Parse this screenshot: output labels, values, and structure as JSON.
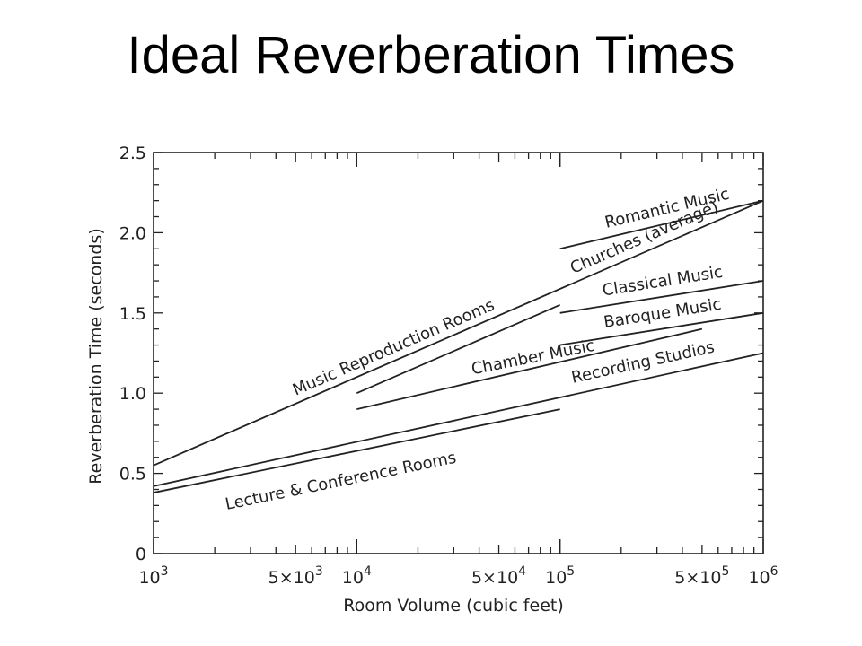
{
  "slide": {
    "title": "Ideal Reverberation Times"
  },
  "chart_data": {
    "type": "line",
    "title": "",
    "xlabel": "Room Volume (cubic feet)",
    "ylabel": "Reverberation Time (seconds)",
    "x_scale": "log",
    "xlim": [
      1000,
      1000000
    ],
    "ylim": [
      0,
      2.5
    ],
    "grid": false,
    "x_ticks": [
      {
        "value": 1000,
        "label": "10",
        "exp": "3"
      },
      {
        "value": 5000,
        "label": "5×10",
        "exp": "3"
      },
      {
        "value": 10000,
        "label": "10",
        "exp": "4"
      },
      {
        "value": 50000,
        "label": "5×10",
        "exp": "4"
      },
      {
        "value": 100000,
        "label": "10",
        "exp": "5"
      },
      {
        "value": 500000,
        "label": "5×10",
        "exp": "5"
      },
      {
        "value": 1000000,
        "label": "10",
        "exp": "6"
      }
    ],
    "y_ticks": [
      {
        "value": 0,
        "label": "0"
      },
      {
        "value": 0.5,
        "label": "0.5"
      },
      {
        "value": 1.0,
        "label": "1.0"
      },
      {
        "value": 1.5,
        "label": "1.5"
      },
      {
        "value": 2.0,
        "label": "2.0"
      },
      {
        "value": 2.5,
        "label": "2.5"
      }
    ],
    "series": [
      {
        "name": "Music Reproduction Rooms",
        "x": [
          1000,
          1000000
        ],
        "y": [
          0.55,
          2.2
        ]
      },
      {
        "name": "Churches (average)",
        "x": [
          10000,
          100000
        ],
        "y": [
          1.0,
          1.55
        ]
      },
      {
        "name": "Romantic Music",
        "x": [
          100000,
          1000000
        ],
        "y": [
          1.9,
          2.2
        ]
      },
      {
        "name": "Classical Music",
        "x": [
          100000,
          1000000
        ],
        "y": [
          1.5,
          1.7
        ]
      },
      {
        "name": "Baroque Music",
        "x": [
          100000,
          1000000
        ],
        "y": [
          1.3,
          1.5
        ]
      },
      {
        "name": "Chamber Music",
        "x": [
          10000,
          500000
        ],
        "y": [
          0.9,
          1.4
        ]
      },
      {
        "name": "Recording Studios",
        "x": [
          1000,
          1000000
        ],
        "y": [
          0.42,
          1.25
        ]
      },
      {
        "name": "Lecture & Conference Rooms",
        "x": [
          1000,
          100000
        ],
        "y": [
          0.38,
          0.9
        ]
      }
    ]
  }
}
